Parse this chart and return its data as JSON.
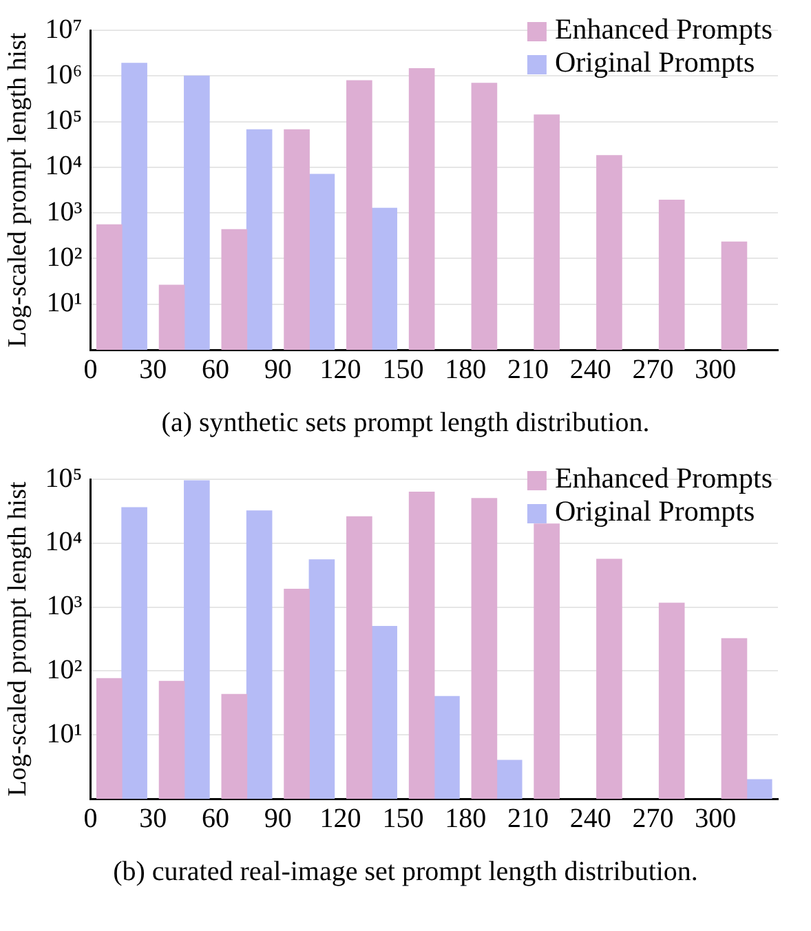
{
  "chart_data": [
    {
      "type": "bar",
      "ylabel": "Log-scaled prompt length hist",
      "log": "y",
      "grid": "y",
      "legend": "top right",
      "xlim": [
        0,
        330
      ],
      "xticks": [
        0,
        30,
        60,
        90,
        120,
        150,
        180,
        210,
        240,
        270,
        300
      ],
      "ylim": [
        1,
        10000000
      ],
      "yticks": [
        {
          "value": 10,
          "label": "10¹"
        },
        {
          "value": 100,
          "label": "10²"
        },
        {
          "value": 1000,
          "label": "10³"
        },
        {
          "value": 10000,
          "label": "10⁴"
        },
        {
          "value": 100000,
          "label": "10⁵"
        },
        {
          "value": 1000000,
          "label": "10⁶"
        },
        {
          "value": 10000000,
          "label": "10⁷"
        }
      ],
      "annotations": [
        "(a) synthetic sets prompt length distribution."
      ],
      "series": [
        {
          "name": "Enhanced Prompts",
          "color": "#ddaed3",
          "x": [
            9,
            39,
            69,
            99,
            129,
            159,
            189,
            219,
            249,
            279,
            309
          ],
          "values": [
            550,
            26,
            430,
            66000,
            790000,
            1450000,
            690000,
            140000,
            18000,
            1900,
            230
          ]
        },
        {
          "name": "Original Prompts",
          "color": "#b5bbf6",
          "x": [
            21,
            51,
            81,
            111,
            141
          ],
          "values": [
            1900000,
            1000000,
            66000,
            7000,
            1260
          ]
        }
      ]
    },
    {
      "type": "bar",
      "ylabel": "Log-scaled prompt length hist",
      "log": "y",
      "grid": "y",
      "legend": "top right",
      "xlim": [
        0,
        330
      ],
      "xticks": [
        0,
        30,
        60,
        90,
        120,
        150,
        180,
        210,
        240,
        270,
        300
      ],
      "ylim": [
        1,
        100000
      ],
      "yticks": [
        {
          "value": 10,
          "label": "10¹"
        },
        {
          "value": 100,
          "label": "10²"
        },
        {
          "value": 1000,
          "label": "10³"
        },
        {
          "value": 10000,
          "label": "10⁴"
        },
        {
          "value": 100000,
          "label": "10⁵"
        }
      ],
      "annotations": [
        "(b) curated real-image set prompt length distribution."
      ],
      "series": [
        {
          "name": "Enhanced Prompts",
          "color": "#ddaed3",
          "x": [
            9,
            39,
            69,
            99,
            129,
            159,
            189,
            219,
            249,
            279,
            309
          ],
          "values": [
            76,
            69,
            43,
            1900,
            26000,
            63000,
            50000,
            20000,
            5600,
            1150,
            320
          ]
        },
        {
          "name": "Original Prompts",
          "color": "#b5bbf6",
          "x": [
            21,
            51,
            81,
            111,
            141,
            171,
            201,
            231,
            261,
            291,
            321
          ],
          "values": [
            36000,
            95000,
            32000,
            5500,
            500,
            40,
            4,
            null,
            null,
            null,
            2
          ]
        }
      ]
    }
  ]
}
